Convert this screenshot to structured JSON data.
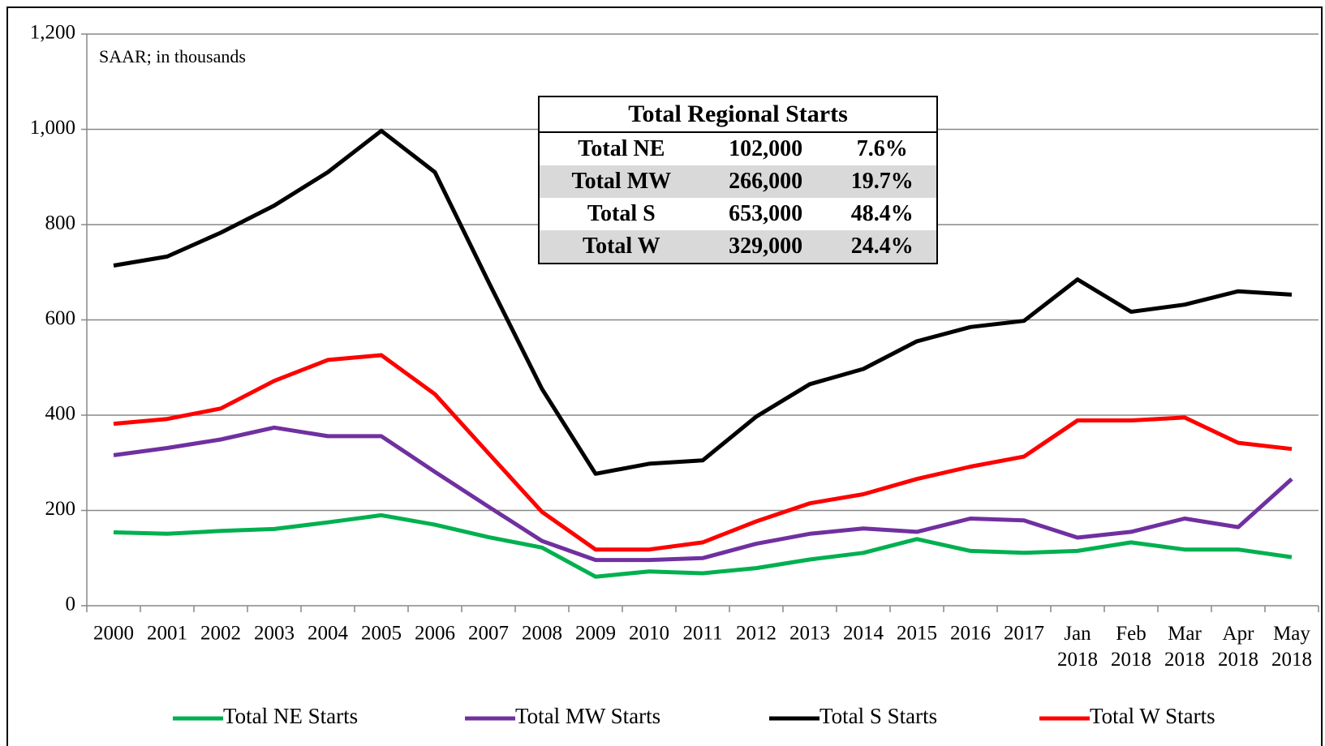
{
  "chart_data": {
    "type": "line",
    "annotation": "SAAR; in thousands",
    "categories": [
      "2000",
      "2001",
      "2002",
      "2003",
      "2004",
      "2005",
      "2006",
      "2007",
      "2008",
      "2009",
      "2010",
      "2011",
      "2012",
      "2013",
      "2014",
      "2015",
      "2016",
      "2017",
      "Jan 2018",
      "Feb 2018",
      "Mar 2018",
      "Apr 2018",
      "May 2018"
    ],
    "series": [
      {
        "name": "Total NE Starts",
        "color": "#00b050",
        "values": [
          154,
          151,
          157,
          161,
          175,
          190,
          170,
          144,
          122,
          61,
          72,
          68,
          79,
          97,
          111,
          140,
          115,
          111,
          115,
          133,
          118,
          118,
          102
        ]
      },
      {
        "name": "Total MW Starts",
        "color": "#7030a0",
        "values": [
          316,
          331,
          349,
          374,
          356,
          356,
          281,
          208,
          136,
          96,
          96,
          100,
          130,
          151,
          162,
          155,
          183,
          179,
          143,
          155,
          183,
          165,
          266
        ]
      },
      {
        "name": "Total S Starts",
        "color": "#000000",
        "values": [
          714,
          733,
          783,
          840,
          910,
          997,
          910,
          680,
          455,
          277,
          298,
          305,
          397,
          465,
          497,
          555,
          585,
          598,
          685,
          617,
          632,
          660,
          653
        ]
      },
      {
        "name": "Total W Starts",
        "color": "#ff0000",
        "values": [
          382,
          392,
          414,
          472,
          516,
          526,
          444,
          320,
          197,
          118,
          118,
          133,
          177,
          215,
          234,
          266,
          292,
          313,
          389,
          389,
          395,
          342,
          329
        ]
      }
    ],
    "ylim": [
      0,
      1200
    ],
    "yticks": [
      0,
      200,
      400,
      600,
      800,
      {
        "value": 1000,
        "label": "1,000"
      },
      {
        "value": 1200,
        "label": "1,200"
      }
    ],
    "grid": true,
    "legend": "bottom",
    "table": {
      "title": "Total Regional Starts",
      "rows": [
        [
          "Total NE",
          "102,000",
          "7.6%"
        ],
        [
          "Total MW",
          "266,000",
          "19.7%"
        ],
        [
          "Total S",
          "653,000",
          "48.4%"
        ],
        [
          "Total W",
          "329,000",
          "24.4%"
        ]
      ]
    }
  }
}
